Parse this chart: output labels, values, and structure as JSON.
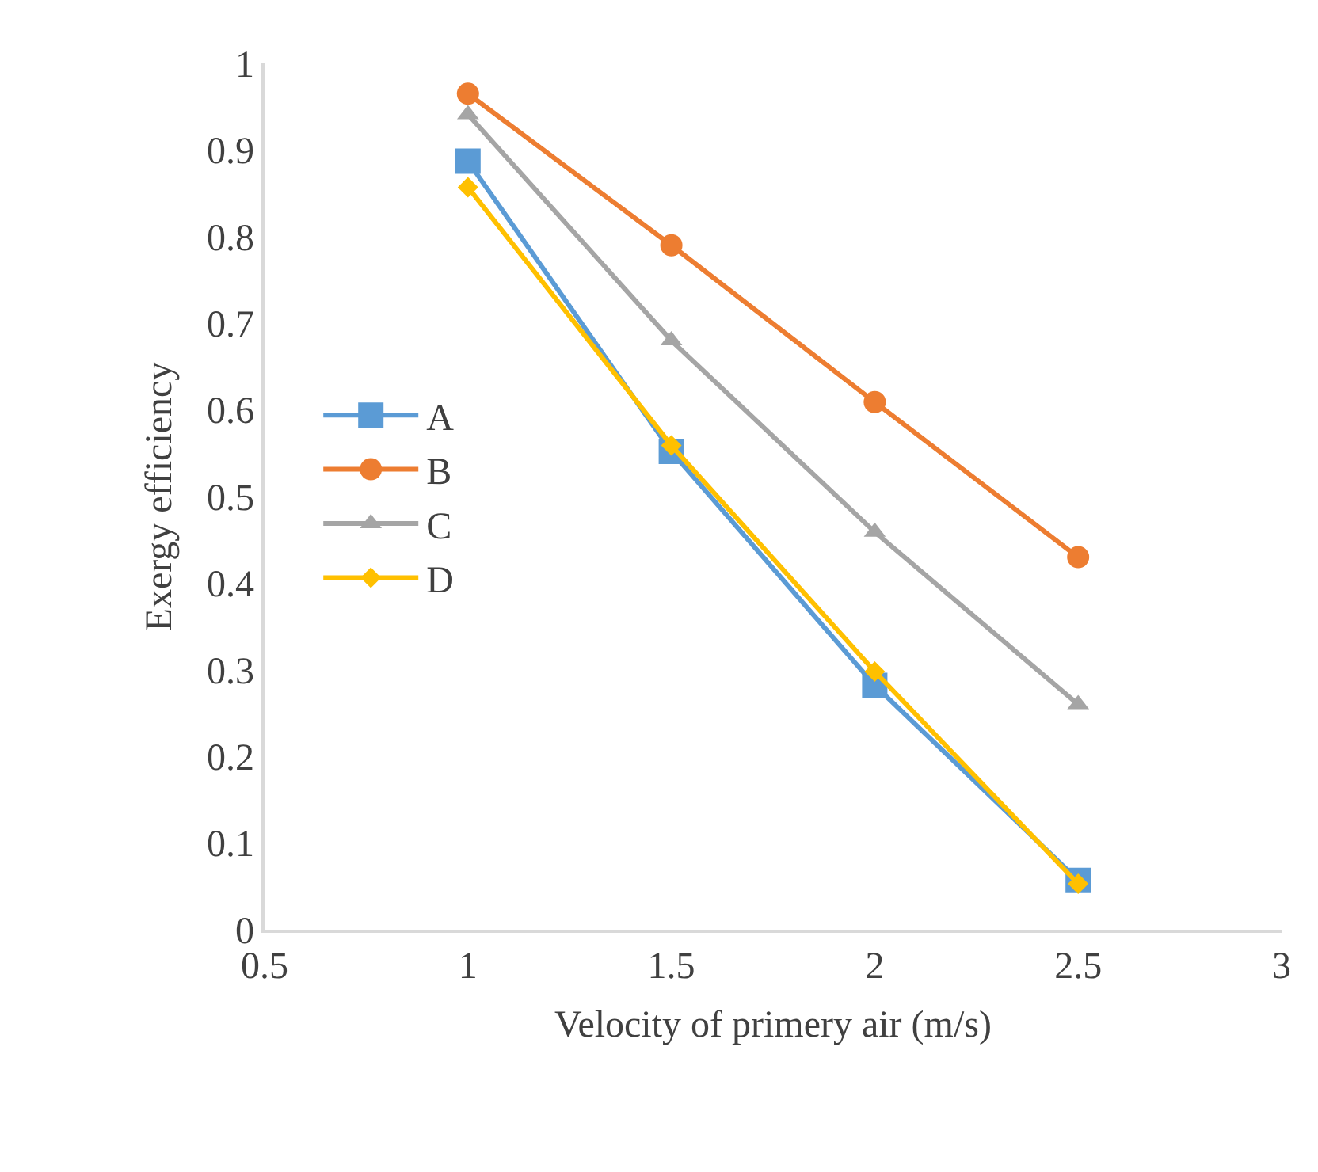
{
  "chart_data": {
    "type": "line",
    "xlabel": "Velocity of primery air (m/s)",
    "ylabel": "Exergy efficiency",
    "x": [
      1,
      1.5,
      2,
      2.5
    ],
    "series": [
      {
        "name": "A",
        "color": "#5b9bd5",
        "marker": "square",
        "values": [
          0.887,
          0.552,
          0.282,
          0.057
        ]
      },
      {
        "name": "B",
        "color": "#ed7d31",
        "marker": "circle",
        "values": [
          0.965,
          0.79,
          0.609,
          0.43
        ]
      },
      {
        "name": "C",
        "color": "#a5a5a5",
        "marker": "triangle",
        "values": [
          0.941,
          0.68,
          0.459,
          0.26
        ]
      },
      {
        "name": "D",
        "color": "#ffc000",
        "marker": "diamond",
        "values": [
          0.857,
          0.559,
          0.298,
          0.053
        ]
      }
    ],
    "xlim": [
      0.5,
      3
    ],
    "xticks": [
      0.5,
      1,
      1.5,
      2,
      2.5,
      3
    ],
    "ylim": [
      0,
      1
    ],
    "yticks": [
      0,
      0.1,
      0.2,
      0.3,
      0.4,
      0.5,
      0.6,
      0.7,
      0.8,
      0.9,
      1
    ],
    "grid": false,
    "legend": "left",
    "line_style": "solid"
  }
}
